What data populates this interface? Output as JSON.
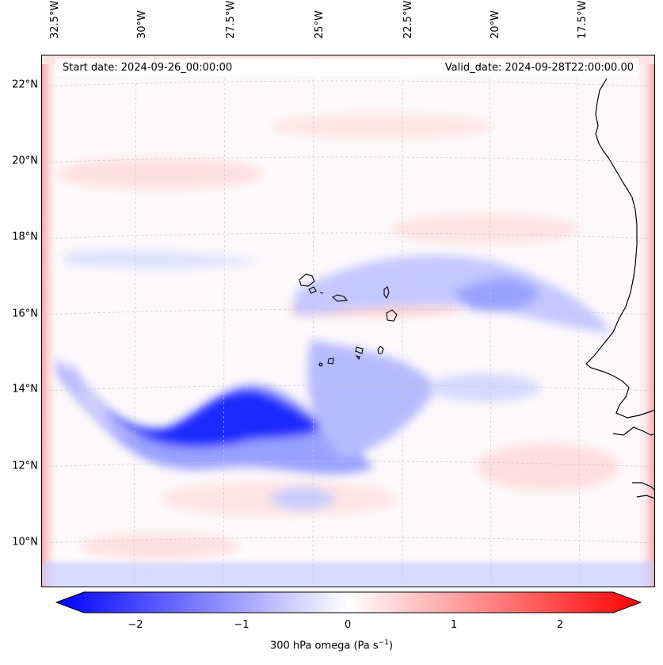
{
  "header": {
    "start_date": "Start date: 2024-09-26_00:00:00",
    "valid_date": "Valid_date: 2024-09-28T22:00:00.00"
  },
  "lon_labels": [
    "32.5°W",
    "30°W",
    "27.5°W",
    "25°W",
    "22.5°W",
    "20°W",
    "17.5°W"
  ],
  "lat_labels": [
    "22°N",
    "20°N",
    "18°N",
    "16°N",
    "14°N",
    "12°N",
    "10°N"
  ],
  "colorbar": {
    "ticks": [
      "−2",
      "−1",
      "0",
      "1",
      "2"
    ],
    "title": "300 hPa omega (Pa s",
    "title_sup": "−1",
    "title_end": ")",
    "colors": {
      "neg": "#0000ff",
      "mid": "#ffffff",
      "pos": "#ff0000"
    }
  },
  "colors": {
    "coastline": "#000000",
    "grid": "#c8c8c8"
  }
}
